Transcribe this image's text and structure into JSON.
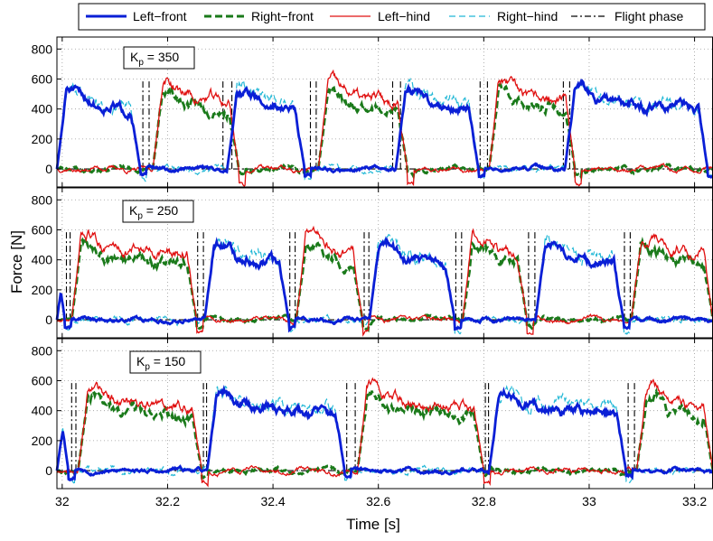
{
  "chart_data": {
    "type": "line",
    "xlabel": "Time [s]",
    "ylabel": "Force [N]",
    "xlim": [
      31.99,
      33.235
    ],
    "ylim": [
      -120,
      880
    ],
    "xticks": [
      32,
      32.2,
      32.4,
      32.6,
      32.8,
      33,
      33.2
    ],
    "yticks": [
      0,
      200,
      400,
      600,
      800
    ],
    "grid": "dotted",
    "legend": {
      "placement": "top",
      "entries": [
        {
          "name": "Left−front",
          "color": "#0a1fd6",
          "style": "solid-thick"
        },
        {
          "name": "Right−front",
          "color": "#1a7a1a",
          "style": "dashed-thick"
        },
        {
          "name": "Left−hind",
          "color": "#e01010",
          "style": "solid-thin"
        },
        {
          "name": "Right−hind",
          "color": "#22b8d6",
          "style": "dashed-thin"
        },
        {
          "name": "Flight phase",
          "color": "#000000",
          "style": "dashdot"
        }
      ]
    },
    "panels": [
      {
        "annotation": {
          "base": "K",
          "sub": "p",
          "rest": " = 350"
        },
        "front_stance": [
          [
            31.99,
            32.148
          ],
          [
            32.313,
            32.46
          ],
          [
            32.633,
            32.79
          ],
          [
            32.954,
            33.225
          ]
        ],
        "hind_stance": [
          [
            32.172,
            32.335
          ],
          [
            32.486,
            32.655
          ],
          [
            32.81,
            32.973
          ]
        ],
        "flight_markers": [
          32.153,
          32.165,
          32.305,
          32.322,
          32.471,
          32.482,
          32.627,
          32.642,
          32.793,
          32.807,
          32.951,
          32.963
        ],
        "front_level": 460,
        "hind_level": 510
      },
      {
        "annotation": {
          "base": "K",
          "sub": "p",
          "rest": " = 250"
        },
        "front_stance": [
          [
            31.99,
            32.005
          ],
          [
            32.27,
            32.43
          ],
          [
            32.583,
            32.745
          ],
          [
            32.898,
            33.065
          ]
        ],
        "hind_stance": [
          [
            32.018,
            32.255
          ],
          [
            32.444,
            32.57
          ],
          [
            32.76,
            32.882
          ],
          [
            33.08,
            33.235
          ]
        ],
        "flight_markers": [
          32.008,
          32.015,
          32.257,
          32.268,
          32.432,
          32.442,
          32.573,
          32.582,
          32.747,
          32.758,
          32.885,
          32.897,
          33.067,
          33.078
        ],
        "front_level": 440,
        "hind_level": 500
      },
      {
        "annotation": {
          "base": "K",
          "sub": "p",
          "rest": " = 150"
        },
        "front_stance": [
          [
            31.99,
            32.012
          ],
          [
            32.275,
            32.536
          ],
          [
            32.81,
            33.07
          ]
        ],
        "hind_stance": [
          [
            32.03,
            32.265
          ],
          [
            32.56,
            32.8
          ],
          [
            33.09,
            33.235
          ]
        ],
        "flight_markers": [
          32.018,
          32.026,
          32.268,
          32.274,
          32.54,
          32.556,
          32.803,
          32.809,
          33.074,
          33.086
        ],
        "front_level": 450,
        "hind_level": 480
      }
    ]
  }
}
